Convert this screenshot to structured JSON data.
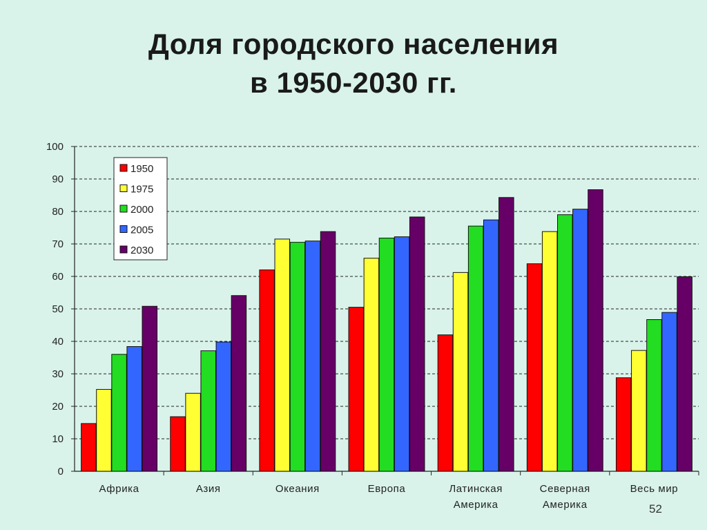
{
  "title": {
    "line1": "Доля городского населения",
    "line2": "в 1950-2030 гг."
  },
  "page_number": "52",
  "chart_data": {
    "type": "bar",
    "categories": [
      [
        "Африка"
      ],
      [
        "Азия"
      ],
      [
        "Океания"
      ],
      [
        "Европа"
      ],
      [
        "Латинская",
        "Америка"
      ],
      [
        "Северная",
        "Америка"
      ],
      [
        "Весь мир"
      ]
    ],
    "series": [
      {
        "name": "1950",
        "color": "#ff0000",
        "values": [
          14.7,
          16.8,
          62.0,
          50.5,
          42.0,
          63.9,
          28.8
        ]
      },
      {
        "name": "1975",
        "color": "#ffff33",
        "values": [
          25.2,
          24.0,
          71.5,
          65.6,
          61.2,
          73.8,
          37.2
        ]
      },
      {
        "name": "2000",
        "color": "#22dd22",
        "values": [
          36.0,
          37.1,
          70.5,
          71.8,
          75.5,
          79.0,
          46.7
        ]
      },
      {
        "name": "2005",
        "color": "#3366ff",
        "values": [
          38.4,
          39.8,
          70.9,
          72.2,
          77.4,
          80.7,
          48.9
        ]
      },
      {
        "name": "2030",
        "color": "#660066",
        "values": [
          50.8,
          54.1,
          73.8,
          78.3,
          84.3,
          86.7,
          59.9
        ]
      }
    ],
    "ylim": [
      0,
      100
    ],
    "yticks": [
      0,
      10,
      20,
      30,
      40,
      50,
      60,
      70,
      80,
      90,
      100
    ],
    "grid": true,
    "legend": "top-left"
  }
}
